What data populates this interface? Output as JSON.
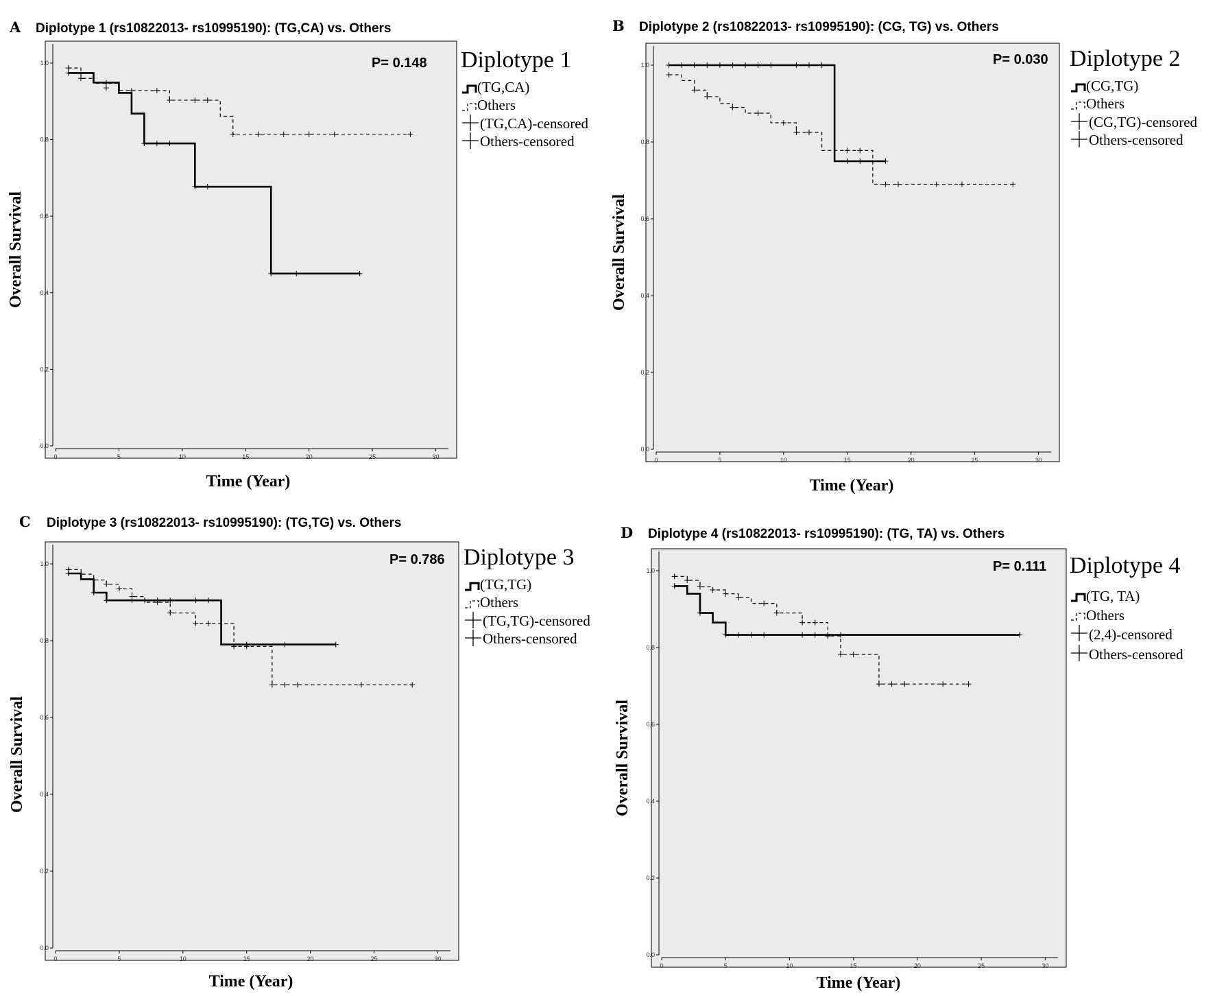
{
  "chart_data": [
    {
      "type": "line",
      "letter": "A",
      "title": "Diplotype 1 (rs10822013- rs10995190): (TG,CA) vs. Others",
      "xlabel": "Time (Year)",
      "ylabel": "Overall Survival",
      "xlim": [
        0,
        31
      ],
      "ylim": [
        0.0,
        1.05
      ],
      "xticks": [
        "0",
        "5",
        "10",
        "15",
        "20",
        "25",
        "30"
      ],
      "yticks": [
        "0.0",
        "0.2",
        "0.4",
        "0.6",
        "0.8",
        "1.0"
      ],
      "p_value": "P= 0.148",
      "legend": {
        "title": "Diplotype 1",
        "placement": "right",
        "items": [
          "(TG,CA)",
          "Others",
          "(TG,CA)-censored",
          "Others-censored"
        ]
      },
      "series": [
        {
          "style": "solid",
          "steps": [
            [
              1,
              0.974
            ],
            [
              3,
              0.949
            ],
            [
              5,
              0.922
            ],
            [
              6,
              0.868
            ],
            [
              7,
              0.79
            ],
            [
              11,
              0.677
            ],
            [
              17,
              0.45
            ],
            [
              24,
              0.45
            ]
          ],
          "censored": [
            [
              1,
              0.974
            ],
            [
              4,
              0.949
            ],
            [
              7,
              0.79
            ],
            [
              8,
              0.79
            ],
            [
              9,
              0.79
            ],
            [
              11,
              0.677
            ],
            [
              12,
              0.677
            ],
            [
              17,
              0.45
            ],
            [
              19,
              0.45
            ],
            [
              24,
              0.45
            ]
          ]
        },
        {
          "style": "dashed",
          "steps": [
            [
              1,
              0.987
            ],
            [
              2,
              0.96
            ],
            [
              3,
              0.947
            ],
            [
              5,
              0.928
            ],
            [
              9,
              0.903
            ],
            [
              13,
              0.861
            ],
            [
              14,
              0.814
            ],
            [
              28,
              0.814
            ]
          ],
          "censored": [
            [
              1,
              0.987
            ],
            [
              2,
              0.96
            ],
            [
              4,
              0.935
            ],
            [
              6,
              0.928
            ],
            [
              8,
              0.928
            ],
            [
              9,
              0.903
            ],
            [
              11,
              0.903
            ],
            [
              12,
              0.903
            ],
            [
              14,
              0.814
            ],
            [
              16,
              0.814
            ],
            [
              18,
              0.814
            ],
            [
              20,
              0.814
            ],
            [
              22,
              0.814
            ],
            [
              28,
              0.814
            ]
          ]
        }
      ]
    },
    {
      "type": "line",
      "letter": "B",
      "title": "Diplotype 2 (rs10822013- rs10995190): (CG, TG) vs. Others",
      "xlabel": "Time (Year)",
      "ylabel": "Overall Survival",
      "xlim": [
        0,
        31
      ],
      "ylim": [
        0.0,
        1.05
      ],
      "xticks": [
        "0",
        "5",
        "10",
        "15",
        "20",
        "25",
        "30"
      ],
      "yticks": [
        "0.0",
        "0.2",
        "0.4",
        "0.6",
        "0.8",
        "1.0"
      ],
      "p_value": "P= 0.030",
      "legend": {
        "title": "Diplotype 2",
        "placement": "right",
        "items": [
          "(CG,TG)",
          "Others",
          "(CG,TG)-censored",
          "Others-censored"
        ]
      },
      "series": [
        {
          "style": "solid",
          "steps": [
            [
              1,
              1.0
            ],
            [
              14,
              0.75
            ],
            [
              18,
              0.75
            ]
          ],
          "censored": [
            [
              1,
              1.0
            ],
            [
              2,
              1.0
            ],
            [
              3,
              1.0
            ],
            [
              4,
              1.0
            ],
            [
              5,
              1.0
            ],
            [
              6,
              1.0
            ],
            [
              7,
              1.0
            ],
            [
              8,
              1.0
            ],
            [
              9,
              1.0
            ],
            [
              11,
              1.0
            ],
            [
              12,
              1.0
            ],
            [
              13,
              1.0
            ],
            [
              15,
              0.75
            ],
            [
              16,
              0.75
            ],
            [
              18,
              0.75
            ]
          ]
        },
        {
          "style": "dashed",
          "steps": [
            [
              1,
              0.975
            ],
            [
              2,
              0.96
            ],
            [
              3,
              0.935
            ],
            [
              4,
              0.918
            ],
            [
              5,
              0.9
            ],
            [
              6,
              0.89
            ],
            [
              7,
              0.875
            ],
            [
              9,
              0.85
            ],
            [
              11,
              0.825
            ],
            [
              13,
              0.778
            ],
            [
              17,
              0.69
            ],
            [
              28,
              0.69
            ]
          ],
          "censored": [
            [
              1,
              0.975
            ],
            [
              3,
              0.935
            ],
            [
              4,
              0.918
            ],
            [
              6,
              0.89
            ],
            [
              8,
              0.875
            ],
            [
              10,
              0.85
            ],
            [
              11,
              0.825
            ],
            [
              12,
              0.825
            ],
            [
              15,
              0.778
            ],
            [
              16,
              0.778
            ],
            [
              18,
              0.69
            ],
            [
              19,
              0.69
            ],
            [
              22,
              0.69
            ],
            [
              24,
              0.69
            ],
            [
              28,
              0.69
            ]
          ]
        }
      ]
    },
    {
      "type": "line",
      "letter": "C",
      "title": "Diplotype 3 (rs10822013- rs10995190): (TG,TG) vs. Others",
      "xlabel": "Time (Year)",
      "ylabel": "Overall Survival",
      "xlim": [
        0,
        31
      ],
      "ylim": [
        0.0,
        1.05
      ],
      "xticks": [
        "0",
        "5",
        "10",
        "15",
        "20",
        "25",
        "30"
      ],
      "yticks": [
        "0.0",
        "0.2",
        "0.4",
        "0.6",
        "0.8",
        "1.0"
      ],
      "p_value": "P= 0.786",
      "legend": {
        "title": "Diplotype 3",
        "placement": "right",
        "items": [
          "(TG,TG)",
          "Others",
          "(TG,TG)-censored",
          "Others-censored"
        ]
      },
      "series": [
        {
          "style": "solid",
          "steps": [
            [
              1,
              0.975
            ],
            [
              2,
              0.96
            ],
            [
              3,
              0.925
            ],
            [
              4,
              0.905
            ],
            [
              13,
              0.79
            ],
            [
              22,
              0.79
            ]
          ],
          "censored": [
            [
              1,
              0.975
            ],
            [
              3,
              0.925
            ],
            [
              4,
              0.905
            ],
            [
              6,
              0.905
            ],
            [
              7,
              0.905
            ],
            [
              8,
              0.905
            ],
            [
              9,
              0.905
            ],
            [
              11,
              0.905
            ],
            [
              12,
              0.905
            ],
            [
              15,
              0.79
            ],
            [
              18,
              0.79
            ],
            [
              22,
              0.79
            ]
          ]
        },
        {
          "style": "dashed",
          "steps": [
            [
              1,
              0.985
            ],
            [
              2,
              0.973
            ],
            [
              3,
              0.958
            ],
            [
              4,
              0.947
            ],
            [
              5,
              0.935
            ],
            [
              6,
              0.915
            ],
            [
              7,
              0.9
            ],
            [
              9,
              0.872
            ],
            [
              11,
              0.845
            ],
            [
              14,
              0.785
            ],
            [
              17,
              0.685
            ],
            [
              28,
              0.685
            ]
          ],
          "censored": [
            [
              1,
              0.985
            ],
            [
              3,
              0.958
            ],
            [
              4,
              0.947
            ],
            [
              5,
              0.935
            ],
            [
              6,
              0.915
            ],
            [
              8,
              0.9
            ],
            [
              9,
              0.872
            ],
            [
              11,
              0.845
            ],
            [
              12,
              0.845
            ],
            [
              14,
              0.785
            ],
            [
              15,
              0.785
            ],
            [
              17,
              0.685
            ],
            [
              18,
              0.685
            ],
            [
              19,
              0.685
            ],
            [
              24,
              0.685
            ],
            [
              28,
              0.685
            ]
          ]
        }
      ]
    },
    {
      "type": "line",
      "letter": "D",
      "title": "Diplotype 4 (rs10822013- rs10995190): (TG, TA) vs. Others",
      "xlabel": "Time (Year)",
      "ylabel": "Overall Survival",
      "xlim": [
        0,
        31
      ],
      "ylim": [
        0.0,
        1.05
      ],
      "xticks": [
        "0",
        "5",
        "10",
        "15",
        "20",
        "25",
        "30"
      ],
      "yticks": [
        "0.0",
        "0.2",
        "0.4",
        "0.6",
        "0.8",
        "1.0"
      ],
      "p_value": "P= 0.111",
      "legend": {
        "title": "Diplotype 4",
        "placement": "right",
        "items": [
          "(TG, TA)",
          "Others",
          "(2,4)-censored",
          "Others-censored"
        ]
      },
      "series": [
        {
          "style": "solid",
          "steps": [
            [
              1,
              0.96
            ],
            [
              2,
              0.94
            ],
            [
              3,
              0.89
            ],
            [
              4,
              0.865
            ],
            [
              5,
              0.833
            ],
            [
              28,
              0.833
            ]
          ],
          "censored": [
            [
              1,
              0.96
            ],
            [
              3,
              0.89
            ],
            [
              5,
              0.833
            ],
            [
              6,
              0.833
            ],
            [
              7,
              0.833
            ],
            [
              8,
              0.833
            ],
            [
              11,
              0.833
            ],
            [
              12,
              0.833
            ],
            [
              13,
              0.833
            ],
            [
              14,
              0.833
            ],
            [
              28,
              0.833
            ]
          ]
        },
        {
          "style": "dashed",
          "steps": [
            [
              1,
              0.985
            ],
            [
              2,
              0.975
            ],
            [
              3,
              0.958
            ],
            [
              4,
              0.95
            ],
            [
              5,
              0.94
            ],
            [
              6,
              0.93
            ],
            [
              7,
              0.915
            ],
            [
              9,
              0.89
            ],
            [
              11,
              0.865
            ],
            [
              13,
              0.83
            ],
            [
              14,
              0.782
            ],
            [
              17,
              0.705
            ],
            [
              24,
              0.705
            ]
          ],
          "censored": [
            [
              1,
              0.985
            ],
            [
              2,
              0.975
            ],
            [
              3,
              0.958
            ],
            [
              4,
              0.95
            ],
            [
              5,
              0.94
            ],
            [
              6,
              0.93
            ],
            [
              8,
              0.915
            ],
            [
              9,
              0.89
            ],
            [
              11,
              0.865
            ],
            [
              12,
              0.865
            ],
            [
              13,
              0.83
            ],
            [
              14,
              0.782
            ],
            [
              15,
              0.782
            ],
            [
              17,
              0.705
            ],
            [
              18,
              0.705
            ],
            [
              19,
              0.705
            ],
            [
              22,
              0.705
            ],
            [
              24,
              0.705
            ]
          ]
        }
      ]
    }
  ]
}
